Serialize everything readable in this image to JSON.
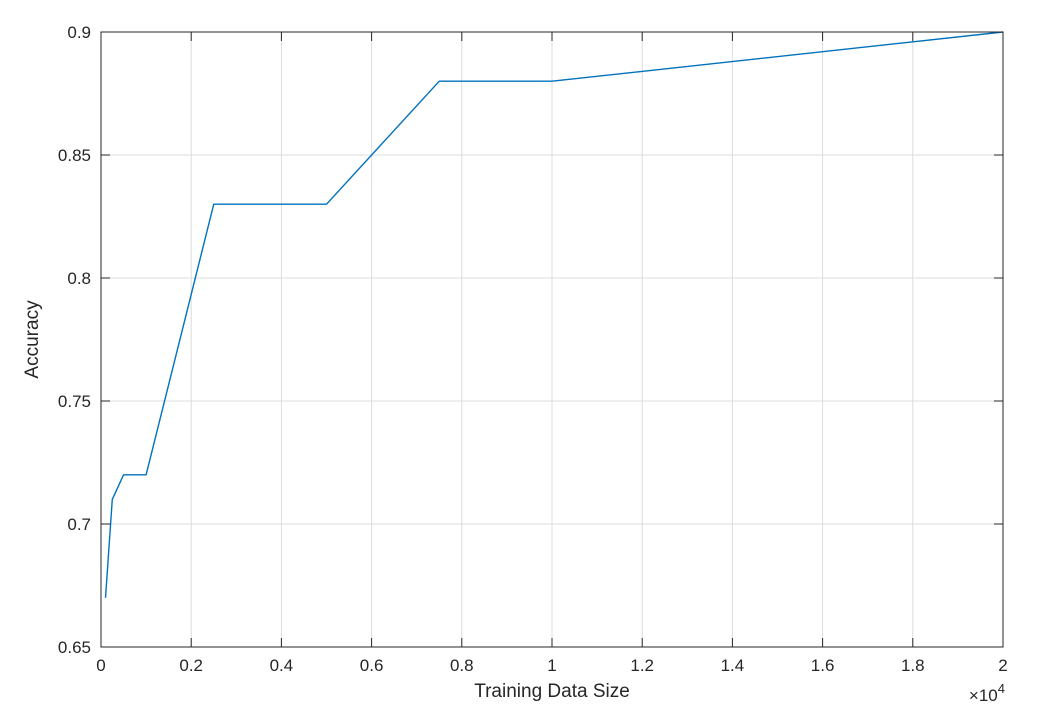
{
  "chart_data": {
    "type": "line",
    "title": "",
    "xlabel": "Training Data Size",
    "ylabel": "Accuracy",
    "xlim": [
      0,
      20000
    ],
    "ylim": [
      0.65,
      0.9
    ],
    "x_ticks": [
      0,
      2000,
      4000,
      6000,
      8000,
      10000,
      12000,
      14000,
      16000,
      18000,
      20000
    ],
    "x_tick_labels": [
      "0",
      "0.2",
      "0.4",
      "0.6",
      "0.8",
      "1",
      "1.2",
      "1.4",
      "1.6",
      "1.8",
      "2"
    ],
    "x_exponent_label": "×10⁴",
    "y_ticks": [
      0.65,
      0.7,
      0.75,
      0.8,
      0.85,
      0.9
    ],
    "y_tick_labels": [
      "0.65",
      "0.7",
      "0.75",
      "0.8",
      "0.85",
      "0.9"
    ],
    "grid": true,
    "series": [
      {
        "color": "#0072BD",
        "x": [
          100,
          250,
          500,
          1000,
          2500,
          5000,
          7500,
          10000,
          20000
        ],
        "y": [
          0.67,
          0.71,
          0.72,
          0.72,
          0.83,
          0.83,
          0.88,
          0.88,
          0.9
        ]
      }
    ]
  }
}
